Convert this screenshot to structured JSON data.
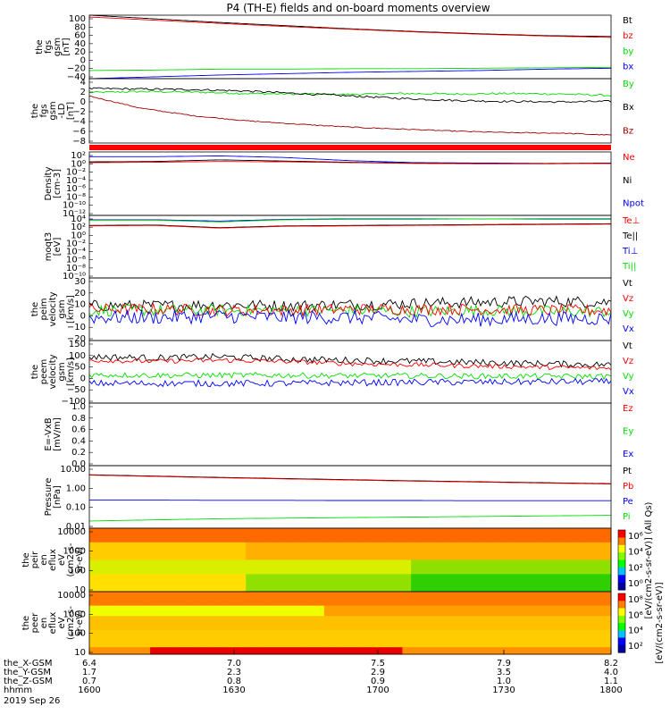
{
  "title": "P4 (TH-E) fields and on-board moments overview",
  "colors": {
    "black": "#000000",
    "red": "#ff0000",
    "green": "#00dd00",
    "blue": "#0000ff",
    "darkred": "#a00000"
  },
  "chart_data": [
    {
      "type": "line",
      "ylabel": [
        "the",
        "fgs",
        "gsm",
        "[nT]"
      ],
      "yticks": [
        "100",
        "80",
        "60",
        "40",
        "20",
        "0",
        "−20",
        "−40"
      ],
      "ylim": [
        -40,
        100
      ],
      "legend": [
        {
          "name": "Bt",
          "color": "black"
        },
        {
          "name": "bz",
          "color": "red"
        },
        {
          "name": "by",
          "color": "green"
        },
        {
          "name": "bx",
          "color": "blue"
        }
      ],
      "series": [
        {
          "name": "Bt",
          "color": "black",
          "values": [
            100,
            92,
            84,
            77,
            70,
            64,
            59,
            55,
            53
          ]
        },
        {
          "name": "bz",
          "color": "red",
          "values": [
            96,
            89,
            82,
            75,
            69,
            63,
            58,
            54,
            51
          ]
        },
        {
          "name": "by",
          "color": "green",
          "values": [
            -22,
            -21,
            -19,
            -19,
            -18,
            -18,
            -17,
            -16,
            -15
          ]
        },
        {
          "name": "bx",
          "color": "blue",
          "values": [
            -40,
            -36,
            -32,
            -29,
            -26,
            -24,
            -22,
            -19,
            -17
          ]
        }
      ]
    },
    {
      "type": "line",
      "ylabel": [
        "the",
        "fgs",
        "gsm",
        "-LD",
        "[nT]"
      ],
      "yticks": [
        "4",
        "2",
        "0",
        "−2",
        "−4",
        "−6",
        "−8"
      ],
      "ylim": [
        -9,
        4
      ],
      "legend": [
        {
          "name": "By",
          "color": "green"
        },
        {
          "name": "Bx",
          "color": "black"
        },
        {
          "name": "Bz",
          "color": "darkred"
        }
      ],
      "series": [
        {
          "name": "By",
          "color": "green",
          "values": [
            1.2,
            1.4,
            1.3,
            1.0,
            0.9,
            0.8,
            1.0,
            0.9,
            1.0,
            0.9,
            0.6
          ],
          "noise": 0.2
        },
        {
          "name": "Bx",
          "color": "black",
          "values": [
            2.0,
            1.9,
            1.8,
            1.5,
            1.0,
            0.5,
            0.0,
            -0.4,
            -0.6,
            -0.7,
            -0.6
          ],
          "noise": 0.2
        },
        {
          "name": "Bz",
          "color": "darkred",
          "values": [
            0.5,
            -2.0,
            -3.5,
            -4.5,
            -5.2,
            -5.8,
            -6.2,
            -6.6,
            -6.9,
            -7.0,
            -7.4
          ],
          "noise": 0.1
        }
      ]
    },
    {
      "type": "line",
      "log": true,
      "ylabel": [
        "Density",
        "[cm-3]"
      ],
      "yticks": [
        "10²",
        "10⁰",
        "10⁻²",
        "10⁻⁴",
        "10⁻⁶",
        "10⁻⁸",
        "10⁻¹⁰",
        "10⁻¹²"
      ],
      "ylim": [
        -13,
        3
      ],
      "legend": [
        {
          "name": "Ne",
          "color": "red"
        },
        {
          "name": "Ni",
          "color": "black"
        },
        {
          "name": "Npot",
          "color": "blue"
        }
      ],
      "series": [
        {
          "name": "Npot",
          "color": "blue",
          "values": [
            1.8,
            1.8,
            2.0,
            1.6,
            0.8,
            0.3,
            0.2,
            0.1,
            0.1
          ]
        },
        {
          "name": "Ni",
          "color": "black",
          "values": [
            0.5,
            0.6,
            1.0,
            0.7,
            0.4,
            0.2,
            0.1,
            0.1,
            0.2
          ]
        },
        {
          "name": "Ne",
          "color": "red",
          "values": [
            0.3,
            0.4,
            0.6,
            0.5,
            0.3,
            0.1,
            0.0,
            0.0,
            0.1
          ]
        }
      ]
    },
    {
      "type": "line",
      "log": true,
      "ylabel": [
        "moqt3",
        "[eV]"
      ],
      "yticks": [
        "10⁴",
        "10²",
        "10⁰",
        "10⁻²",
        "10⁻⁴",
        "10⁻⁶",
        "10⁻⁸",
        "10⁻¹⁰"
      ],
      "ylim": [
        -10,
        4.3
      ],
      "legend": [
        {
          "name": "Te⊥",
          "color": "red"
        },
        {
          "name": "Te||",
          "color": "black"
        },
        {
          "name": "Ti⊥",
          "color": "blue"
        },
        {
          "name": "Ti||",
          "color": "green"
        }
      ],
      "series": [
        {
          "name": "Ti⊥",
          "color": "blue",
          "values": [
            3.3,
            3.3,
            3.0,
            3.4,
            3.5,
            3.5,
            3.5,
            3.5,
            3.5
          ]
        },
        {
          "name": "Ti||",
          "color": "green",
          "values": [
            3.2,
            3.2,
            2.8,
            3.3,
            3.4,
            3.4,
            3.5,
            3.4,
            3.4
          ]
        },
        {
          "name": "Te||",
          "color": "black",
          "values": [
            2.0,
            2.1,
            1.5,
            1.9,
            2.0,
            2.1,
            2.2,
            2.3,
            2.4
          ]
        },
        {
          "name": "Te⊥",
          "color": "red",
          "values": [
            1.9,
            2.0,
            1.4,
            1.8,
            1.9,
            2.0,
            2.1,
            2.2,
            2.3
          ]
        }
      ]
    },
    {
      "type": "line",
      "ylabel": [
        "the",
        "peim",
        "velocity",
        "gsm",
        "[km/s]"
      ],
      "yticks": [
        "30",
        "20",
        "10",
        "0",
        "−10",
        "−20"
      ],
      "ylim": [
        -24,
        30
      ],
      "legend": [
        {
          "name": "Vt",
          "color": "black"
        },
        {
          "name": "Vz",
          "color": "red"
        },
        {
          "name": "Vy",
          "color": "green"
        },
        {
          "name": "Vx",
          "color": "blue"
        }
      ],
      "series": [
        {
          "name": "Vt",
          "color": "black",
          "values": [
            6,
            6,
            7,
            6,
            7,
            8,
            9,
            10,
            9
          ],
          "noise": 5
        },
        {
          "name": "Vy",
          "color": "green",
          "values": [
            2,
            2,
            2,
            2,
            2,
            1,
            2,
            1,
            1
          ],
          "noise": 5
        },
        {
          "name": "Vz",
          "color": "red",
          "values": [
            3,
            3,
            2,
            2,
            3,
            3,
            3,
            2,
            2
          ],
          "noise": 5
        },
        {
          "name": "Vx",
          "color": "blue",
          "values": [
            -4,
            -4,
            -3,
            -4,
            -4,
            -6,
            -6,
            -5,
            -5
          ],
          "noise": 6
        }
      ]
    },
    {
      "type": "line",
      "ylabel": [
        "the",
        "peem",
        "velocity",
        "gsm",
        "[km/s]"
      ],
      "yticks": [
        "150",
        "100",
        "50",
        "0",
        "−50",
        "−100"
      ],
      "ylim": [
        -110,
        160
      ],
      "legend": [
        {
          "name": "Vt",
          "color": "black"
        },
        {
          "name": "Vz",
          "color": "red"
        },
        {
          "name": "Vy",
          "color": "green"
        },
        {
          "name": "Vx",
          "color": "blue"
        }
      ],
      "series": [
        {
          "name": "Vt",
          "color": "black",
          "values": [
            90,
            85,
            90,
            80,
            75,
            70,
            65,
            60,
            55
          ],
          "noise": 14
        },
        {
          "name": "Vz",
          "color": "red",
          "values": [
            75,
            70,
            75,
            70,
            60,
            55,
            50,
            45,
            40
          ],
          "noise": 10
        },
        {
          "name": "Vy",
          "color": "green",
          "values": [
            12,
            10,
            10,
            10,
            8,
            8,
            6,
            6,
            5
          ],
          "noise": 12
        },
        {
          "name": "Vx",
          "color": "blue",
          "values": [
            -25,
            -25,
            -25,
            -25,
            -22,
            -20,
            -20,
            -18,
            -18
          ],
          "noise": 14
        }
      ]
    },
    {
      "type": "line",
      "ylabel": [
        "E=-VxB",
        "[mV/m]"
      ],
      "yticks": [
        "1.0",
        "0.8",
        "0.6",
        "0.4",
        "0.2",
        "0.0"
      ],
      "ylim": [
        0,
        1
      ],
      "legend": [
        {
          "name": "Ez",
          "color": "red"
        },
        {
          "name": "Ey",
          "color": "green"
        },
        {
          "name": "Ex",
          "color": "blue"
        }
      ],
      "series": []
    },
    {
      "type": "line",
      "log": true,
      "ylabel": [
        "Pressure",
        "[nPa]"
      ],
      "yticks": [
        "10.00",
        "1.00",
        "0.10",
        "0.01"
      ],
      "ylim": [
        -2.2,
        1.1
      ],
      "legend": [
        {
          "name": "Pt",
          "color": "black"
        },
        {
          "name": "Pb",
          "color": "red"
        },
        {
          "name": "Pe",
          "color": "blue"
        },
        {
          "name": "Pi",
          "color": "green"
        }
      ],
      "series": [
        {
          "name": "Pt",
          "color": "black",
          "values": [
            0.62,
            0.55,
            0.48,
            0.42,
            0.36,
            0.3,
            0.25,
            0.2,
            0.15
          ]
        },
        {
          "name": "Pb",
          "color": "red",
          "values": [
            0.6,
            0.53,
            0.46,
            0.4,
            0.34,
            0.28,
            0.23,
            0.18,
            0.13
          ]
        },
        {
          "name": "Pe",
          "color": "blue",
          "values": [
            -0.72,
            -0.72,
            -0.73,
            -0.73,
            -0.74,
            -0.74,
            -0.75,
            -0.75,
            -0.75
          ]
        },
        {
          "name": "Pi",
          "color": "green",
          "values": [
            -1.82,
            -1.76,
            -1.7,
            -1.67,
            -1.64,
            -1.61,
            -1.58,
            -1.55,
            -1.52
          ]
        }
      ]
    },
    {
      "type": "heatmap",
      "ylabel": [
        "the",
        "peir",
        "en",
        "eflux",
        "eV",
        "(cm2-s-",
        "sr-eV)"
      ],
      "yticks": [
        "10000",
        "1000",
        "100",
        "10"
      ],
      "ylim": [
        5,
        20000
      ],
      "colorbar": {
        "ticks": [
          "10⁶",
          "10⁴",
          "10²",
          "10⁰"
        ],
        "label": "[eV/(cm2-s-sr-eV)] (All Qs)"
      }
    },
    {
      "type": "heatmap",
      "ylabel": [
        "the",
        "peer",
        "en",
        "eflux",
        "eV",
        "(cm2-s-",
        "sr-eV)"
      ],
      "yticks": [
        "10000",
        "1000",
        "100",
        "10"
      ],
      "ylim": [
        5,
        20000
      ],
      "colorbar": {
        "ticks": [
          "10⁸",
          "10⁶",
          "10⁴",
          "10²"
        ],
        "label": "[eV/(cm2-s-sr-eV)]"
      }
    }
  ],
  "xaxis": {
    "rows": [
      {
        "label": "the_X-GSM",
        "values": [
          "6.4",
          "7.0",
          "7.5",
          "7.9",
          "8.2"
        ]
      },
      {
        "label": "the_Y-GSM",
        "values": [
          "1.7",
          "2.3",
          "2.9",
          "3.5",
          "4.0"
        ]
      },
      {
        "label": "the_Z-GSM",
        "values": [
          "0.7",
          "0.8",
          "0.9",
          "1.0",
          "1.1"
        ]
      },
      {
        "label": "hhmm",
        "values": [
          "1600",
          "1630",
          "1700",
          "1730",
          "1800"
        ]
      }
    ],
    "date": "2019 Sep 26"
  }
}
